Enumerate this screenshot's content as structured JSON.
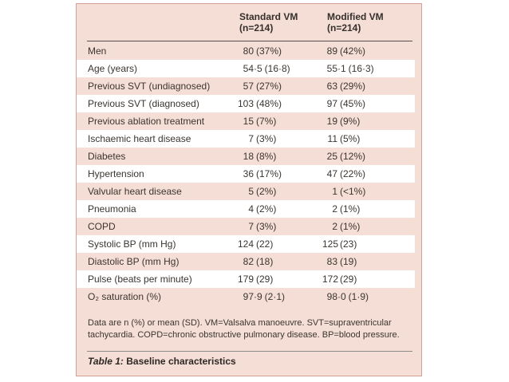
{
  "colors": {
    "panel_bg": "#f5ded6",
    "stripe_bg": "#ffffff",
    "panel_border": "#d2a098",
    "header_rule": "#55504b",
    "caption_rule": "#8f8b88",
    "text": "#3b3530"
  },
  "table": {
    "col_headers": [
      {
        "line1": "Standard VM",
        "line2": "(n=214)"
      },
      {
        "line1": "Modified VM",
        "line2": "(n=214)"
      }
    ],
    "rows": [
      {
        "label": "Men",
        "standard": "80 (37%)",
        "modified": "89 (42%)"
      },
      {
        "label": "Age (years)",
        "standard": "54·5 (16·8)",
        "modified": "55·1 (16·3)"
      },
      {
        "label": "Previous SVT (undiagnosed)",
        "standard": "57 (27%)",
        "modified": "63 (29%)"
      },
      {
        "label": "Previous SVT (diagnosed)",
        "standard": "103 (48%)",
        "modified": "97 (45%)"
      },
      {
        "label": "Previous ablation treatment",
        "standard": "15 (7%)",
        "modified": "19 (9%)"
      },
      {
        "label": "Ischaemic heart disease",
        "standard": "7 (3%)",
        "modified": "11 (5%)"
      },
      {
        "label": "Diabetes",
        "standard": "18 (8%)",
        "modified": "25 (12%)"
      },
      {
        "label": "Hypertension",
        "standard": "36 (17%)",
        "modified": "47 (22%)"
      },
      {
        "label": "Valvular heart disease",
        "standard": "5 (2%)",
        "modified": "1 (<1%)"
      },
      {
        "label": "Pneumonia",
        "standard": "4 (2%)",
        "modified": "2 (1%)"
      },
      {
        "label": "COPD",
        "standard": "7 (3%)",
        "modified": "2 (1%)"
      },
      {
        "label": "Systolic BP (mm Hg)",
        "standard": "124 (22)",
        "modified": "125 (23)"
      },
      {
        "label": "Diastolic BP (mm Hg)",
        "standard": "82 (18)",
        "modified": "83 (19)"
      },
      {
        "label": "Pulse (beats per minute)",
        "standard": "179 (29)",
        "modified": "172 (29)"
      },
      {
        "label": "O₂ saturation (%)",
        "standard": "97·9 (2·1)",
        "modified": "98·0 (1·9)"
      }
    ],
    "footnote": "Data are n (%) or mean (SD). VM=Valsalva manoeuvre. SVT=supraventricular tachycardia. COPD=chronic obstructive pulmonary disease. BP=blood pressure.",
    "caption": {
      "prefix": "Table 1:",
      "title": "Baseline characteristics"
    }
  }
}
